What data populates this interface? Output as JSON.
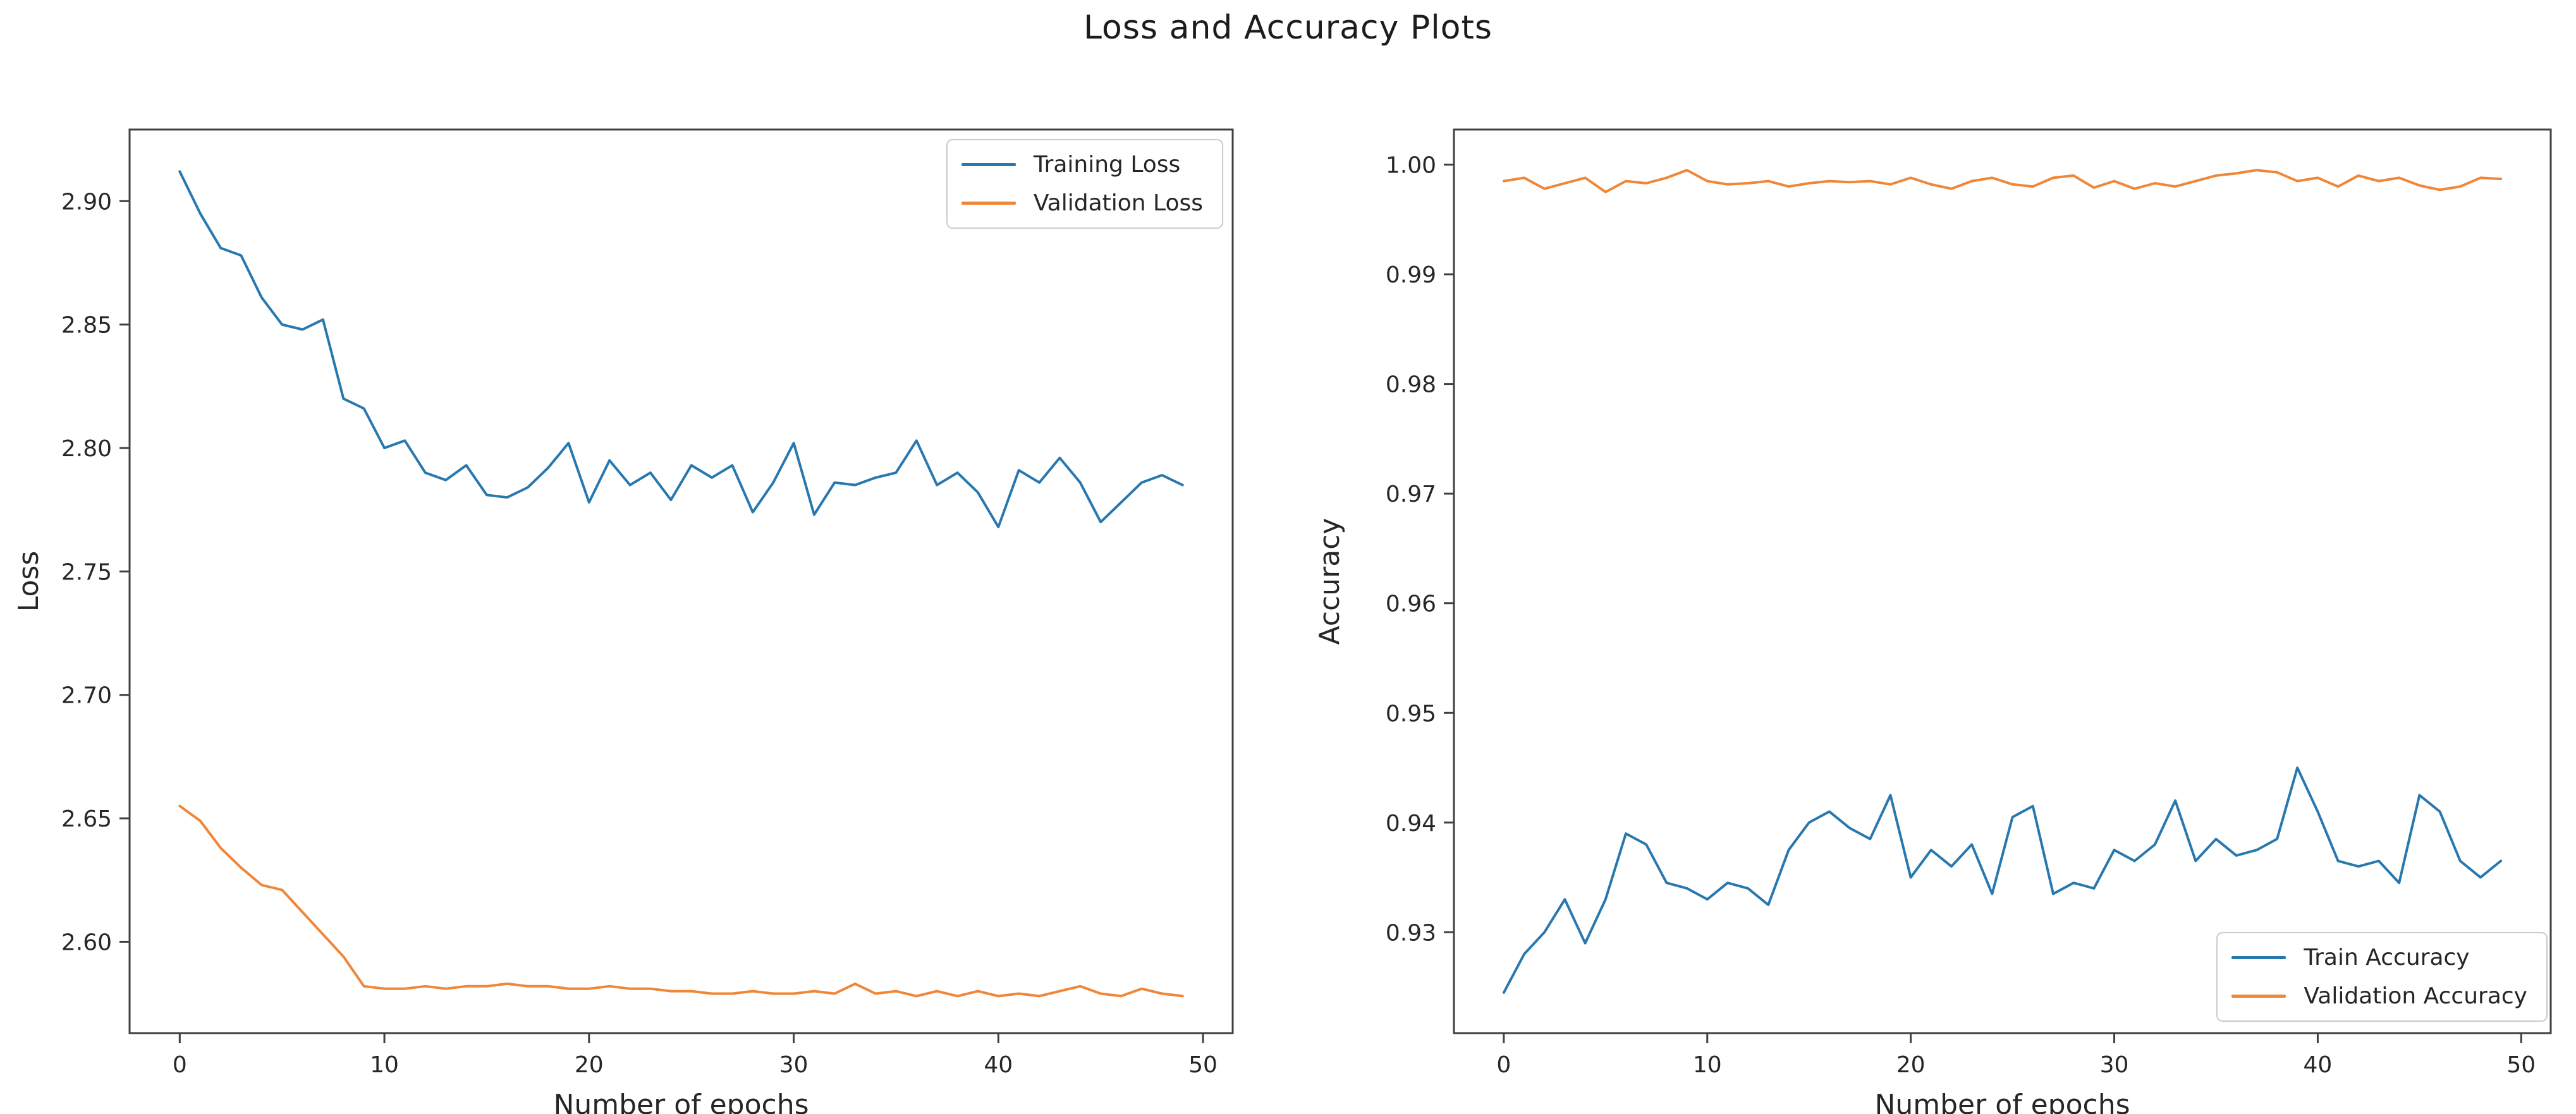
{
  "page_title": "Loss and Accuracy Plots",
  "colors": {
    "train_line": "#2878b0",
    "validation_line": "#f08638",
    "axis": "#404040",
    "tick_text": "#262626"
  },
  "chart_data": [
    {
      "type": "line",
      "title": "",
      "xlabel": "Number of epochs",
      "ylabel": "Loss",
      "legend_position": "top-right",
      "xlim": [
        -2.45,
        51.45
      ],
      "ylim": [
        2.563,
        2.929
      ],
      "xtick_values": [
        0,
        10,
        20,
        30,
        40,
        50
      ],
      "xtick_labels": [
        "0",
        "10",
        "20",
        "30",
        "40",
        "50"
      ],
      "ytick_values": [
        2.6,
        2.65,
        2.7,
        2.75,
        2.8,
        2.85,
        2.9
      ],
      "ytick_labels": [
        "2.60",
        "2.65",
        "2.70",
        "2.75",
        "2.80",
        "2.85",
        "2.90"
      ],
      "x": [
        0,
        1,
        2,
        3,
        4,
        5,
        6,
        7,
        8,
        9,
        10,
        11,
        12,
        13,
        14,
        15,
        16,
        17,
        18,
        19,
        20,
        21,
        22,
        23,
        24,
        25,
        26,
        27,
        28,
        29,
        30,
        31,
        32,
        33,
        34,
        35,
        36,
        37,
        38,
        39,
        40,
        41,
        42,
        43,
        44,
        45,
        46,
        47,
        48,
        49
      ],
      "series": [
        {
          "name": "Training Loss",
          "color": "#2878b0",
          "values": [
            2.912,
            2.895,
            2.881,
            2.878,
            2.861,
            2.85,
            2.848,
            2.852,
            2.82,
            2.816,
            2.8,
            2.803,
            2.79,
            2.787,
            2.793,
            2.781,
            2.78,
            2.784,
            2.792,
            2.802,
            2.778,
            2.795,
            2.785,
            2.79,
            2.779,
            2.793,
            2.788,
            2.793,
            2.774,
            2.786,
            2.802,
            2.773,
            2.786,
            2.785,
            2.788,
            2.79,
            2.803,
            2.785,
            2.79,
            2.782,
            2.768,
            2.791,
            2.786,
            2.796,
            2.786,
            2.77,
            2.778,
            2.786,
            2.789,
            2.785
          ]
        },
        {
          "name": "Validation Loss",
          "color": "#f08638",
          "values": [
            2.655,
            2.649,
            2.638,
            2.63,
            2.623,
            2.621,
            2.612,
            2.603,
            2.594,
            2.582,
            2.581,
            2.581,
            2.582,
            2.581,
            2.582,
            2.582,
            2.583,
            2.582,
            2.582,
            2.581,
            2.581,
            2.582,
            2.581,
            2.581,
            2.58,
            2.58,
            2.579,
            2.579,
            2.58,
            2.579,
            2.579,
            2.58,
            2.579,
            2.583,
            2.579,
            2.58,
            2.578,
            2.58,
            2.578,
            2.58,
            2.578,
            2.579,
            2.578,
            2.58,
            2.582,
            2.579,
            2.578,
            2.581,
            2.579,
            2.578
          ]
        }
      ]
    },
    {
      "type": "line",
      "title": "",
      "xlabel": "Number of epochs",
      "ylabel": "Accuracy",
      "legend_position": "bottom-right",
      "xlim": [
        -2.45,
        51.45
      ],
      "ylim": [
        0.9208,
        1.0032
      ],
      "xtick_values": [
        0,
        10,
        20,
        30,
        40,
        50
      ],
      "xtick_labels": [
        "0",
        "10",
        "20",
        "30",
        "40",
        "50"
      ],
      "ytick_values": [
        0.93,
        0.94,
        0.95,
        0.96,
        0.97,
        0.98,
        0.99,
        1.0
      ],
      "ytick_labels": [
        "0.93",
        "0.94",
        "0.95",
        "0.96",
        "0.97",
        "0.98",
        "0.99",
        "1.00"
      ],
      "x": [
        0,
        1,
        2,
        3,
        4,
        5,
        6,
        7,
        8,
        9,
        10,
        11,
        12,
        13,
        14,
        15,
        16,
        17,
        18,
        19,
        20,
        21,
        22,
        23,
        24,
        25,
        26,
        27,
        28,
        29,
        30,
        31,
        32,
        33,
        34,
        35,
        36,
        37,
        38,
        39,
        40,
        41,
        42,
        43,
        44,
        45,
        46,
        47,
        48,
        49
      ],
      "series": [
        {
          "name": "Train Accuracy",
          "color": "#2878b0",
          "values": [
            0.9245,
            0.928,
            0.93,
            0.933,
            0.929,
            0.933,
            0.939,
            0.938,
            0.9345,
            0.934,
            0.933,
            0.9345,
            0.934,
            0.9325,
            0.9375,
            0.94,
            0.941,
            0.9395,
            0.9385,
            0.9425,
            0.935,
            0.9375,
            0.936,
            0.938,
            0.9335,
            0.9405,
            0.9415,
            0.9335,
            0.9345,
            0.934,
            0.9375,
            0.9365,
            0.938,
            0.942,
            0.9365,
            0.9385,
            0.937,
            0.9375,
            0.9385,
            0.945,
            0.941,
            0.9365,
            0.936,
            0.9365,
            0.9345,
            0.9425,
            0.941,
            0.9365,
            0.935,
            0.9365
          ]
        },
        {
          "name": "Validation Accuracy",
          "color": "#f08638",
          "values": [
            0.9985,
            0.9988,
            0.9978,
            0.9983,
            0.9988,
            0.9975,
            0.9985,
            0.9983,
            0.9988,
            0.9995,
            0.9985,
            0.9982,
            0.9983,
            0.9985,
            0.998,
            0.9983,
            0.9985,
            0.9984,
            0.9985,
            0.9982,
            0.9988,
            0.9982,
            0.9978,
            0.9985,
            0.9988,
            0.9982,
            0.998,
            0.9988,
            0.999,
            0.9979,
            0.9985,
            0.9978,
            0.9983,
            0.998,
            0.9985,
            0.999,
            0.9992,
            0.9995,
            0.9993,
            0.9985,
            0.9988,
            0.998,
            0.999,
            0.9985,
            0.9988,
            0.9981,
            0.9977,
            0.998,
            0.9988,
            0.9987
          ]
        }
      ]
    }
  ]
}
